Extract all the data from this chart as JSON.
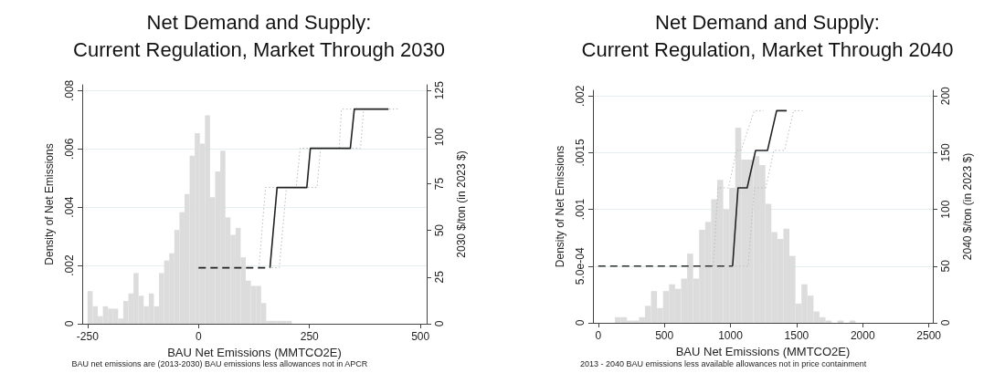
{
  "chart_data": [
    {
      "type": "histogram",
      "title": "Net Demand and Supply:\nCurrent Regulation, Market Through 2030",
      "xlabel": "BAU Net Emissions (MMTCO2E)",
      "ylabel": "Density of Net Emissions",
      "y2label": "2030 $/ton (in 2023 $)",
      "annotations": [
        "BAU net emissions are (2013-2030) BAU emissions less allowances not in APCR"
      ],
      "xlim": [
        -262,
        514
      ],
      "xticks": [
        -250,
        0,
        250,
        500
      ],
      "ylim": [
        0,
        0.0082
      ],
      "yticks": [
        0,
        {
          "value": 0.002,
          "label": ".002"
        },
        {
          "value": 0.004,
          "label": ".004"
        },
        {
          "value": 0.006,
          "label": ".006"
        },
        {
          "value": 0.008,
          "label": ".008"
        }
      ],
      "y2lim": [
        0,
        128
      ],
      "y2ticks": [
        0,
        25,
        50,
        75,
        100,
        125
      ],
      "grid": "y",
      "series": [
        {
          "color": "#dcdcdc",
          "bins": [
            -250,
            -238.5,
            -227,
            -215.5,
            -204,
            -192.5,
            -181,
            -169.5,
            -158,
            -146.5,
            -135,
            -123.5,
            -112,
            -100.5,
            -89,
            -77.5,
            -66,
            -54.5,
            -43,
            -31.5,
            -20,
            -8.5,
            3,
            14.5,
            26,
            37.5,
            49,
            60.5,
            72,
            83.5,
            95,
            106.5,
            118,
            129.5,
            141,
            152.5,
            164,
            175.5,
            187,
            198.5,
            210
          ],
          "values": [
            0.00112,
            0.0006,
            0.00026,
            0.0006,
            0.00052,
            0.00052,
            0.00018,
            0.00078,
            0.00104,
            0.00174,
            0.00096,
            0.0006,
            0.00104,
            0.0006,
            0.00174,
            0.00217,
            0.00242,
            0.00322,
            0.00383,
            0.00445,
            0.00577,
            0.00654,
            0.00618,
            0.00715,
            0.00434,
            0.00523,
            0.00594,
            0.00365,
            0.00305,
            0.00329,
            0.00228,
            0.00148,
            0.0013,
            0.0013,
            0.00071,
            0.0001,
            0.0001,
            0.0001,
            0.0001,
            0.0001
          ]
        },
        {
          "type": "line",
          "axis": "y2",
          "color": "#bbbbbb",
          "line_style": "dotted",
          "x": [
            136,
            151,
            220,
            229,
            317,
            322,
            428
          ],
          "values": [
            30,
            73,
            73,
            94,
            94,
            115,
            115
          ]
        },
        {
          "type": "line",
          "axis": "y2",
          "color": "#bbbbbb",
          "line_style": "dotted",
          "x": [
            165,
            182,
            198,
            267,
            275,
            365,
            372,
            449
          ],
          "values": [
            30,
            30,
            73,
            73,
            94,
            94,
            115,
            115
          ]
        },
        {
          "type": "line",
          "axis": "y2",
          "color": "#222222",
          "line_style": "dashed",
          "x": [
            0,
            161
          ],
          "values": [
            30,
            30
          ]
        },
        {
          "type": "line",
          "axis": "y2",
          "color": "#222222",
          "line_style": "solid",
          "x": [
            161,
            177,
            244,
            252,
            342,
            351,
            428
          ],
          "values": [
            30,
            73,
            73,
            94,
            94,
            115,
            115
          ]
        }
      ]
    },
    {
      "type": "histogram",
      "title": "Net Demand and Supply:\nCurrent Regulation, Market Through 2040",
      "xlabel": "BAU Net Emissions (MMTCO2E)",
      "ylabel": "Density of Net Emissions",
      "y2label": "2040 $/ton (in 2023 $)",
      "annotations": [
        "2013 - 2040 BAU emissions less available allowances not in price containment"
      ],
      "xlim": [
        -40,
        2530
      ],
      "xticks": [
        0,
        500,
        1000,
        1500,
        2000,
        2500
      ],
      "ylim": [
        0,
        0.00205
      ],
      "yticks": [
        0,
        {
          "value": 0.0005,
          "label": "5.0e-04"
        },
        {
          "value": 0.001,
          "label": ".001"
        },
        {
          "value": 0.0015,
          "label": ".0015"
        },
        {
          "value": 0.002,
          "label": ".002"
        }
      ],
      "y2lim": [
        0,
        205
      ],
      "y2ticks": [
        0,
        50,
        100,
        150,
        200
      ],
      "grid": "y",
      "series": [
        {
          "color": "#dcdcdc",
          "bins": [
            126,
            171.5,
            217,
            262.5,
            308,
            353.5,
            399,
            444.5,
            490,
            535.5,
            581,
            626.5,
            672,
            717.5,
            763,
            808.5,
            854,
            899.5,
            945,
            990.5,
            1036,
            1081.5,
            1127,
            1172.5,
            1218,
            1263.5,
            1309,
            1354.5,
            1400,
            1445.5,
            1491,
            1536.5,
            1582,
            1627.5,
            1673,
            1718.5,
            1764,
            1809.5,
            1855,
            1900.5,
            1946
          ],
          "values": [
            5e-05,
            5e-05,
            2e-05,
            2e-05,
            5e-05,
            0.00015,
            0.00028,
            0.00013,
            0.00028,
            0.00034,
            0.0003,
            0.00039,
            0.00061,
            0.00039,
            0.00082,
            0.00089,
            0.00109,
            0.00126,
            0.001,
            0.00119,
            0.00172,
            0.00144,
            0.00144,
            0.00147,
            0.00139,
            0.00105,
            0.0008,
            0.00074,
            0.00083,
            0.00059,
            0.00017,
            0.00034,
            0.00024,
            0.0001,
            5e-05,
            2e-05,
            0,
            2e-05,
            0,
            2e-05
          ]
        },
        {
          "type": "line",
          "axis": "y2",
          "color": "#bbbbbb",
          "line_style": "dotted",
          "x": [
            870,
            905,
            985,
            1045,
            1080,
            1180,
            1250
          ],
          "values": [
            50,
            119,
            119,
            152,
            152,
            187,
            187
          ]
        },
        {
          "type": "line",
          "axis": "y2",
          "color": "#bbbbbb",
          "line_style": "dotted",
          "x": [
            1010,
            1134,
            1180,
            1267,
            1328,
            1409,
            1477,
            1546
          ],
          "values": [
            50,
            50,
            119,
            119,
            152,
            152,
            187,
            187
          ]
        },
        {
          "type": "line",
          "axis": "y2",
          "color": "#333333",
          "line_style": "dashed",
          "x": [
            0,
            1016
          ],
          "values": [
            50,
            50
          ]
        },
        {
          "type": "line",
          "axis": "y2",
          "color": "#222222",
          "line_style": "solid",
          "x": [
            1016,
            1057,
            1126,
            1190,
            1280,
            1349,
            1425
          ],
          "values": [
            50,
            119,
            119,
            152,
            152,
            187,
            187
          ]
        }
      ]
    }
  ]
}
